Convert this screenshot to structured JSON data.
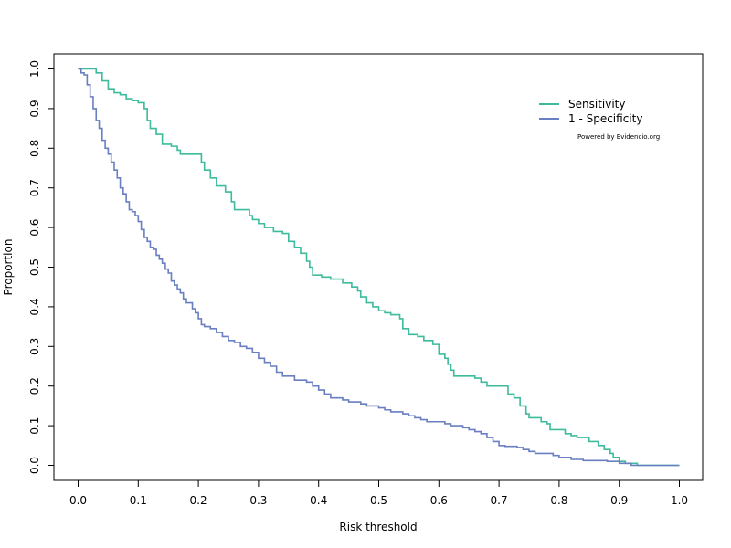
{
  "chart_data": {
    "type": "line",
    "title": "",
    "xlabel": "Risk threshold",
    "ylabel": "Proportion",
    "xlim": [
      0.0,
      1.0
    ],
    "ylim": [
      0.0,
      1.0
    ],
    "x_ticks": [
      "0.0",
      "0.1",
      "0.2",
      "0.3",
      "0.4",
      "0.5",
      "0.6",
      "0.7",
      "0.8",
      "0.9",
      "1.0"
    ],
    "y_ticks": [
      "0.0",
      "0.1",
      "0.2",
      "0.3",
      "0.4",
      "0.5",
      "0.6",
      "0.7",
      "0.8",
      "0.9",
      "1.0"
    ],
    "grid": false,
    "legend": "top-right",
    "annotation": "Powered by Evidencio.org",
    "series": [
      {
        "name": "Sensitivity",
        "color": "#3dbb9c",
        "points": [
          [
            0.0,
            1.0
          ],
          [
            0.02,
            1.0
          ],
          [
            0.03,
            0.99
          ],
          [
            0.04,
            0.97
          ],
          [
            0.05,
            0.95
          ],
          [
            0.06,
            0.94
          ],
          [
            0.07,
            0.935
          ],
          [
            0.08,
            0.925
          ],
          [
            0.09,
            0.92
          ],
          [
            0.1,
            0.915
          ],
          [
            0.11,
            0.9
          ],
          [
            0.115,
            0.87
          ],
          [
            0.12,
            0.85
          ],
          [
            0.13,
            0.835
          ],
          [
            0.14,
            0.81
          ],
          [
            0.155,
            0.805
          ],
          [
            0.165,
            0.795
          ],
          [
            0.17,
            0.785
          ],
          [
            0.2,
            0.785
          ],
          [
            0.205,
            0.765
          ],
          [
            0.21,
            0.745
          ],
          [
            0.22,
            0.725
          ],
          [
            0.23,
            0.705
          ],
          [
            0.245,
            0.69
          ],
          [
            0.255,
            0.665
          ],
          [
            0.26,
            0.645
          ],
          [
            0.28,
            0.645
          ],
          [
            0.285,
            0.63
          ],
          [
            0.29,
            0.62
          ],
          [
            0.3,
            0.61
          ],
          [
            0.31,
            0.6
          ],
          [
            0.325,
            0.59
          ],
          [
            0.34,
            0.585
          ],
          [
            0.35,
            0.565
          ],
          [
            0.36,
            0.55
          ],
          [
            0.37,
            0.535
          ],
          [
            0.38,
            0.515
          ],
          [
            0.385,
            0.5
          ],
          [
            0.39,
            0.48
          ],
          [
            0.405,
            0.475
          ],
          [
            0.42,
            0.47
          ],
          [
            0.44,
            0.46
          ],
          [
            0.455,
            0.45
          ],
          [
            0.465,
            0.44
          ],
          [
            0.47,
            0.425
          ],
          [
            0.48,
            0.41
          ],
          [
            0.49,
            0.4
          ],
          [
            0.5,
            0.39
          ],
          [
            0.51,
            0.385
          ],
          [
            0.52,
            0.38
          ],
          [
            0.535,
            0.37
          ],
          [
            0.54,
            0.345
          ],
          [
            0.55,
            0.33
          ],
          [
            0.565,
            0.325
          ],
          [
            0.575,
            0.315
          ],
          [
            0.59,
            0.305
          ],
          [
            0.6,
            0.28
          ],
          [
            0.61,
            0.27
          ],
          [
            0.615,
            0.255
          ],
          [
            0.62,
            0.24
          ],
          [
            0.625,
            0.225
          ],
          [
            0.66,
            0.22
          ],
          [
            0.67,
            0.21
          ],
          [
            0.68,
            0.2
          ],
          [
            0.7,
            0.2
          ],
          [
            0.715,
            0.18
          ],
          [
            0.725,
            0.17
          ],
          [
            0.735,
            0.15
          ],
          [
            0.745,
            0.13
          ],
          [
            0.75,
            0.12
          ],
          [
            0.77,
            0.11
          ],
          [
            0.78,
            0.105
          ],
          [
            0.785,
            0.09
          ],
          [
            0.8,
            0.09
          ],
          [
            0.81,
            0.08
          ],
          [
            0.82,
            0.075
          ],
          [
            0.83,
            0.07
          ],
          [
            0.85,
            0.06
          ],
          [
            0.865,
            0.05
          ],
          [
            0.875,
            0.04
          ],
          [
            0.885,
            0.03
          ],
          [
            0.89,
            0.02
          ],
          [
            0.9,
            0.01
          ],
          [
            0.91,
            0.005
          ],
          [
            0.93,
            0.0
          ],
          [
            1.0,
            0.0
          ]
        ]
      },
      {
        "name": "1 - Specificity",
        "color": "#6a7fc1",
        "points": [
          [
            0.0,
            1.0
          ],
          [
            0.005,
            0.99
          ],
          [
            0.01,
            0.985
          ],
          [
            0.015,
            0.96
          ],
          [
            0.02,
            0.93
          ],
          [
            0.025,
            0.9
          ],
          [
            0.03,
            0.87
          ],
          [
            0.035,
            0.85
          ],
          [
            0.04,
            0.82
          ],
          [
            0.045,
            0.8
          ],
          [
            0.05,
            0.785
          ],
          [
            0.055,
            0.765
          ],
          [
            0.06,
            0.745
          ],
          [
            0.065,
            0.725
          ],
          [
            0.07,
            0.7
          ],
          [
            0.075,
            0.685
          ],
          [
            0.08,
            0.665
          ],
          [
            0.085,
            0.645
          ],
          [
            0.09,
            0.64
          ],
          [
            0.095,
            0.63
          ],
          [
            0.1,
            0.615
          ],
          [
            0.105,
            0.595
          ],
          [
            0.11,
            0.575
          ],
          [
            0.115,
            0.565
          ],
          [
            0.12,
            0.55
          ],
          [
            0.125,
            0.545
          ],
          [
            0.13,
            0.53
          ],
          [
            0.135,
            0.52
          ],
          [
            0.14,
            0.51
          ],
          [
            0.145,
            0.495
          ],
          [
            0.15,
            0.485
          ],
          [
            0.155,
            0.465
          ],
          [
            0.16,
            0.455
          ],
          [
            0.165,
            0.445
          ],
          [
            0.17,
            0.435
          ],
          [
            0.175,
            0.42
          ],
          [
            0.18,
            0.41
          ],
          [
            0.19,
            0.395
          ],
          [
            0.195,
            0.385
          ],
          [
            0.2,
            0.37
          ],
          [
            0.205,
            0.355
          ],
          [
            0.21,
            0.35
          ],
          [
            0.22,
            0.345
          ],
          [
            0.23,
            0.335
          ],
          [
            0.24,
            0.325
          ],
          [
            0.25,
            0.315
          ],
          [
            0.26,
            0.31
          ],
          [
            0.27,
            0.3
          ],
          [
            0.28,
            0.295
          ],
          [
            0.29,
            0.285
          ],
          [
            0.3,
            0.27
          ],
          [
            0.31,
            0.26
          ],
          [
            0.32,
            0.25
          ],
          [
            0.33,
            0.235
          ],
          [
            0.34,
            0.225
          ],
          [
            0.36,
            0.215
          ],
          [
            0.38,
            0.21
          ],
          [
            0.39,
            0.2
          ],
          [
            0.4,
            0.19
          ],
          [
            0.41,
            0.18
          ],
          [
            0.42,
            0.17
          ],
          [
            0.44,
            0.165
          ],
          [
            0.45,
            0.16
          ],
          [
            0.47,
            0.155
          ],
          [
            0.48,
            0.15
          ],
          [
            0.5,
            0.145
          ],
          [
            0.51,
            0.14
          ],
          [
            0.52,
            0.135
          ],
          [
            0.54,
            0.13
          ],
          [
            0.55,
            0.125
          ],
          [
            0.56,
            0.12
          ],
          [
            0.57,
            0.115
          ],
          [
            0.58,
            0.11
          ],
          [
            0.61,
            0.105
          ],
          [
            0.62,
            0.1
          ],
          [
            0.64,
            0.095
          ],
          [
            0.65,
            0.09
          ],
          [
            0.66,
            0.085
          ],
          [
            0.67,
            0.08
          ],
          [
            0.68,
            0.07
          ],
          [
            0.69,
            0.06
          ],
          [
            0.7,
            0.05
          ],
          [
            0.71,
            0.048
          ],
          [
            0.73,
            0.045
          ],
          [
            0.74,
            0.04
          ],
          [
            0.75,
            0.035
          ],
          [
            0.76,
            0.03
          ],
          [
            0.79,
            0.025
          ],
          [
            0.8,
            0.02
          ],
          [
            0.82,
            0.015
          ],
          [
            0.84,
            0.012
          ],
          [
            0.88,
            0.01
          ],
          [
            0.9,
            0.005
          ],
          [
            0.92,
            0.0
          ],
          [
            1.0,
            0.0
          ]
        ]
      }
    ]
  }
}
